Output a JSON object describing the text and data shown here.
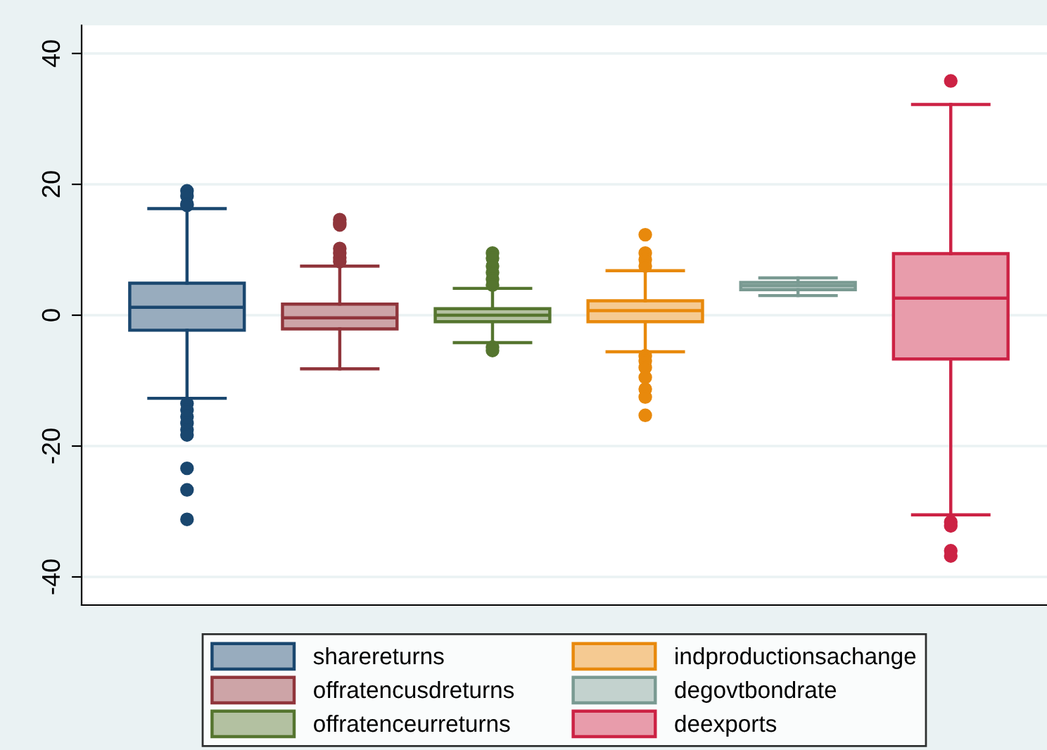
{
  "chart_data": {
    "type": "box",
    "categories": [
      null
    ],
    "ylim": [
      -44.3,
      44.3
    ],
    "yticks": [
      -40,
      -20,
      0,
      20,
      40
    ],
    "grid": "y",
    "legend": "bottom",
    "series": [
      {
        "name": "sharereturns",
        "color": "#1a476f",
        "boxes": [
          {
            "low": -12.7,
            "q1": -2.3,
            "median": 1.2,
            "q3": 4.9,
            "high": 16.3,
            "outliers": [
              19,
              18.2,
              17,
              16.8,
              -13.5,
              -14.5,
              -15.5,
              -16.5,
              -17.5,
              -18.3,
              -23.4,
              -26.7,
              -31.2
            ]
          }
        ]
      },
      {
        "name": "offratencusdreturns",
        "color": "#90353b",
        "boxes": [
          {
            "low": -8.2,
            "q1": -2.1,
            "median": -0.4,
            "q3": 1.7,
            "high": 7.5,
            "outliers": [
              14.6,
              14.1,
              13.8,
              10.2,
              9.5,
              8.8,
              8.2
            ]
          }
        ]
      },
      {
        "name": "offratenceurreturns",
        "color": "#55752f",
        "boxes": [
          {
            "low": -4.2,
            "q1": -1,
            "median": 0,
            "q3": 1,
            "high": 4.1,
            "outliers": [
              9.5,
              8.7,
              7.5,
              6.5,
              5.5,
              4.6,
              -4.9,
              -5.4
            ]
          }
        ]
      },
      {
        "name": "indproductionsachange",
        "color": "#e8890c",
        "boxes": [
          {
            "low": -5.6,
            "q1": -1,
            "median": 0.7,
            "q3": 2.2,
            "high": 6.8,
            "outliers": [
              12.3,
              9.5,
              8.5,
              7.5,
              -6.2,
              -7,
              -8,
              -9.5,
              -11.3,
              -12.5,
              -15.3
            ]
          }
        ]
      },
      {
        "name": "degovtbondrate",
        "color": "#7a9a92",
        "boxes": [
          {
            "low": 3,
            "q1": 3.9,
            "median": 4.5,
            "q3": 5,
            "high": 5.7
          }
        ]
      },
      {
        "name": "deexports",
        "color": "#cc2244",
        "boxes": [
          {
            "low": -30.5,
            "q1": -6.7,
            "median": 2.6,
            "q3": 9.4,
            "high": 32.2,
            "outliers": [
              35.8,
              -31.6,
              -32.2,
              -36,
              -36.8
            ]
          }
        ]
      }
    ]
  }
}
